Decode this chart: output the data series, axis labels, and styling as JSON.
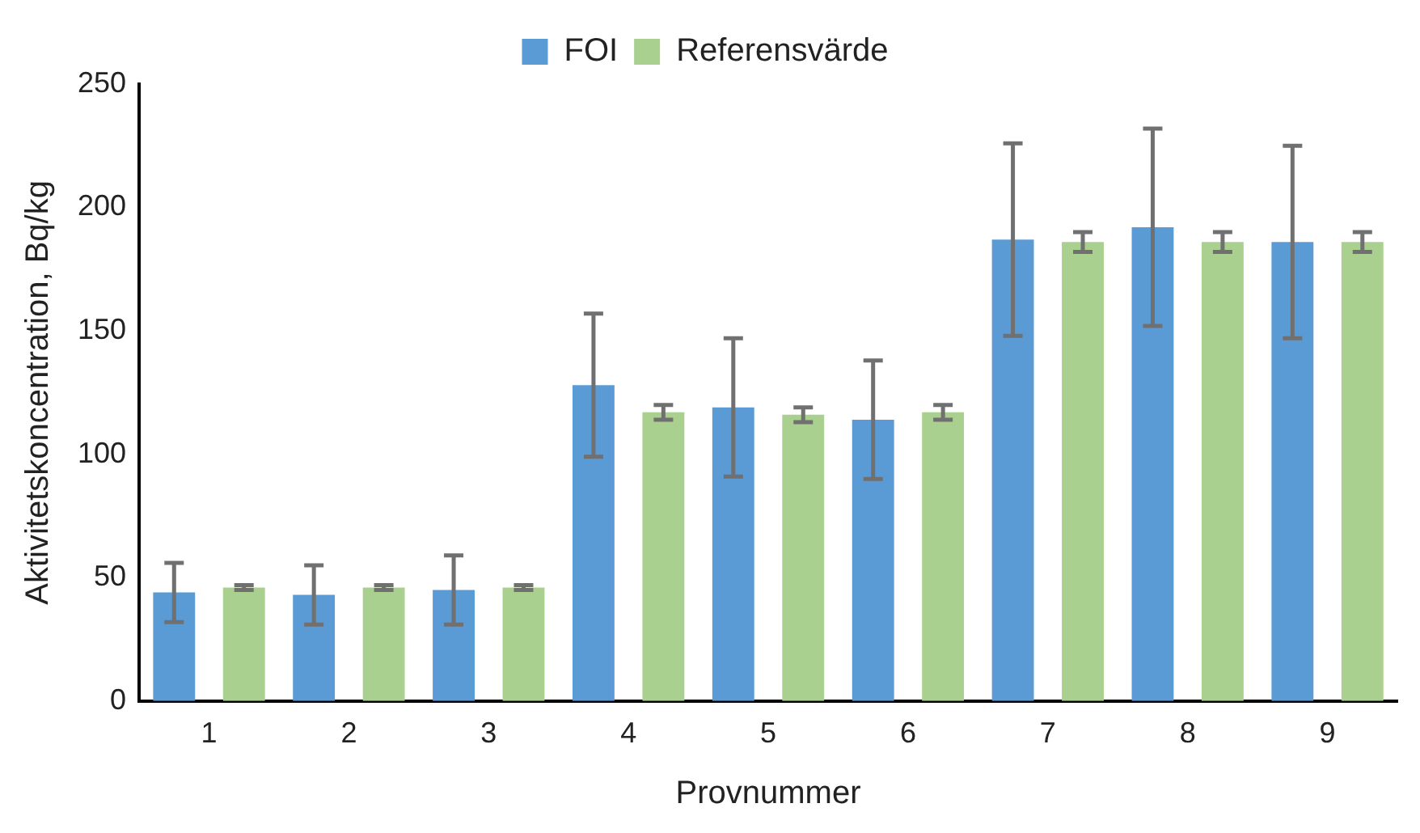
{
  "chart_data": {
    "type": "bar",
    "xlabel": "Provnummer",
    "ylabel": "Aktivitetskoncentration, Bq/kg",
    "categories": [
      "1",
      "2",
      "3",
      "4",
      "5",
      "6",
      "7",
      "8",
      "9"
    ],
    "series": [
      {
        "name": "FOI",
        "color": "#5b9bd5",
        "values": [
          44,
          43,
          45,
          128,
          119,
          114,
          187,
          192,
          186
        ],
        "errors": [
          12,
          12,
          14,
          29,
          28,
          24,
          39,
          40,
          39
        ]
      },
      {
        "name": "Referensvärde",
        "color": "#a9d08e",
        "values": [
          46,
          46,
          46,
          117,
          116,
          117,
          186,
          186,
          186
        ],
        "errors": [
          1,
          1,
          1,
          3,
          3,
          3,
          4,
          4,
          4
        ]
      }
    ],
    "ylim": [
      0,
      250
    ],
    "yticks": [
      0,
      50,
      100,
      150,
      200,
      250
    ],
    "grid": false,
    "legend": "top"
  }
}
